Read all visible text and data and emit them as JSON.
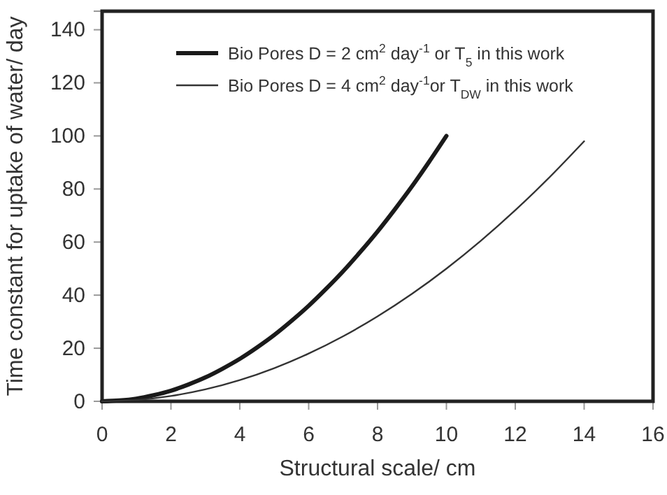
{
  "chart_data": {
    "type": "line",
    "xlabel": "Structural scale/ cm",
    "ylabel": "Time constant for uptake of water/ day",
    "xlim": [
      0,
      16
    ],
    "xticks": [
      0,
      2,
      4,
      6,
      8,
      10,
      12,
      14,
      16
    ],
    "ylim": [
      0,
      147
    ],
    "yticks": [
      0,
      20,
      40,
      60,
      80,
      100,
      120,
      140
    ],
    "grid": false,
    "legend": "top",
    "marker": "none",
    "line_style": "solid",
    "series": [
      {
        "name": "Bio Pores D = 2 cm$^{2}$ day$^{-1}$ or T$_{5}$ in this work",
        "color": "#1a1a1a",
        "x": [
          0,
          0.5,
          1,
          1.5,
          2,
          2.5,
          3,
          3.5,
          4,
          4.5,
          5,
          5.5,
          6,
          6.5,
          7,
          7.5,
          8,
          8.5,
          9,
          9.5,
          10
        ],
        "values": [
          0,
          0.3,
          1,
          2.3,
          4,
          6.3,
          9,
          12.3,
          16,
          20.3,
          25,
          30.3,
          36,
          42.3,
          49,
          56.3,
          64,
          72.3,
          81,
          90.3,
          100
        ]
      },
      {
        "name": "Bio Pores D = 4 cm$^{2}$ day$^{-1}$or T$_{DW}$ in this work",
        "color": "#333333",
        "x": [
          0,
          1,
          2,
          3,
          4,
          5,
          6,
          7,
          8,
          9,
          10,
          11,
          12,
          13,
          14
        ],
        "values": [
          0,
          0.5,
          2,
          4.5,
          8,
          12.5,
          18,
          24.5,
          32,
          40.5,
          50,
          60.5,
          72,
          84.5,
          98
        ]
      }
    ]
  }
}
